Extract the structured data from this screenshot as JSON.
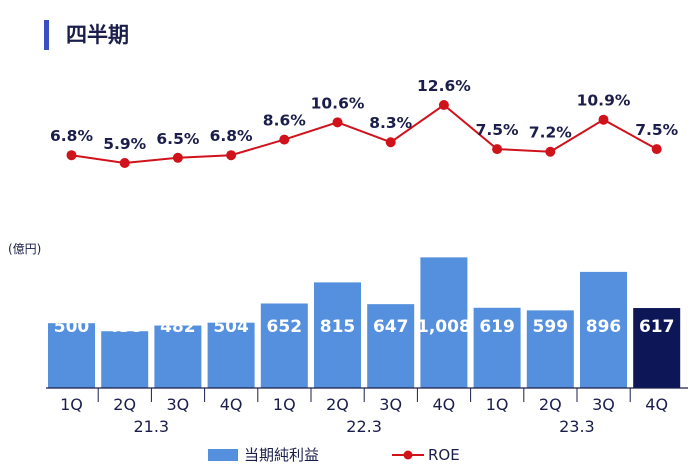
{
  "page": {
    "title": "四半期"
  },
  "chart_data": {
    "type": "bar+line",
    "title": "四半期",
    "ylabel": "(億円)",
    "categories": [
      "1Q",
      "2Q",
      "3Q",
      "4Q",
      "1Q",
      "2Q",
      "3Q",
      "4Q",
      "1Q",
      "2Q",
      "3Q",
      "4Q"
    ],
    "groups": [
      {
        "label": "21.3",
        "quarters": 4
      },
      {
        "label": "22.3",
        "quarters": 4
      },
      {
        "label": "23.3",
        "quarters": 4
      }
    ],
    "bar_series": {
      "name": "当期純利益",
      "values": [
        500,
        438,
        482,
        504,
        652,
        815,
        647,
        1008,
        619,
        599,
        896,
        617
      ],
      "labels": [
        "500",
        "438",
        "482",
        "504",
        "652",
        "815",
        "647",
        "1,008",
        "619",
        "599",
        "896",
        "617"
      ],
      "color": "#5590de",
      "highlight_color": "#0d1656",
      "highlight_index": 11
    },
    "line_series": {
      "name": "ROE",
      "values": [
        6.8,
        5.9,
        6.5,
        6.8,
        8.6,
        10.6,
        8.3,
        12.6,
        7.5,
        7.2,
        10.9,
        7.5
      ],
      "labels": [
        "6.8%",
        "5.9%",
        "6.5%",
        "6.8%",
        "8.6%",
        "10.6%",
        "8.3%",
        "12.6%",
        "7.5%",
        "7.2%",
        "10.9%",
        "7.5%"
      ],
      "color": "#d0121b"
    },
    "bar_ylim": [
      0,
      1100
    ],
    "line_ylim": [
      4,
      13.5
    ]
  }
}
